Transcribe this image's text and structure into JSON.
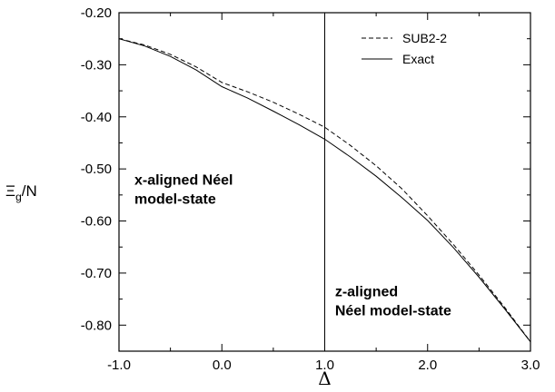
{
  "chart_data": {
    "type": "line",
    "xlabel": "Δ",
    "ylabel_main": "Ξ",
    "ylabel_sub": "g",
    "ylabel_tail": "/N",
    "xlim": [
      -1.0,
      3.0
    ],
    "ylim": [
      -0.85,
      -0.2
    ],
    "x_ticks": [
      "-1.0",
      "0.0",
      "1.0",
      "2.0",
      "3.0"
    ],
    "y_ticks": [
      "-0.20",
      "-0.30",
      "-0.40",
      "-0.50",
      "-0.60",
      "-0.70",
      "-0.80"
    ],
    "vertical_line_x": 1.0,
    "series": [
      {
        "name": "SUB2-2",
        "style": "dashed",
        "x": [
          -1.0,
          -0.75,
          -0.5,
          -0.25,
          0.0,
          0.25,
          0.5,
          0.75,
          1.0,
          1.25,
          1.5,
          1.75,
          2.0,
          2.25,
          2.5,
          2.75,
          3.0
        ],
        "y": [
          -0.25,
          -0.262,
          -0.28,
          -0.304,
          -0.334,
          -0.352,
          -0.372,
          -0.395,
          -0.42,
          -0.455,
          -0.494,
          -0.538,
          -0.59,
          -0.645,
          -0.704,
          -0.766,
          -0.832
        ]
      },
      {
        "name": "Exact",
        "style": "solid",
        "x": [
          -1.0,
          -0.75,
          -0.5,
          -0.25,
          0.0,
          0.25,
          0.5,
          0.75,
          1.0,
          1.25,
          1.5,
          1.75,
          2.0,
          2.25,
          2.5,
          2.75,
          3.0
        ],
        "y": [
          -0.25,
          -0.264,
          -0.284,
          -0.31,
          -0.342,
          -0.364,
          -0.389,
          -0.415,
          -0.443,
          -0.477,
          -0.514,
          -0.555,
          -0.599,
          -0.651,
          -0.708,
          -0.769,
          -0.832
        ]
      }
    ],
    "legend_position": "top-right",
    "annotations": [
      {
        "lines": [
          "x-aligned Néel",
          "model-state"
        ],
        "x": -0.85,
        "y": -0.53
      },
      {
        "lines": [
          "z-aligned",
          "Néel model-state"
        ],
        "x": 1.1,
        "y": -0.745
      }
    ]
  }
}
